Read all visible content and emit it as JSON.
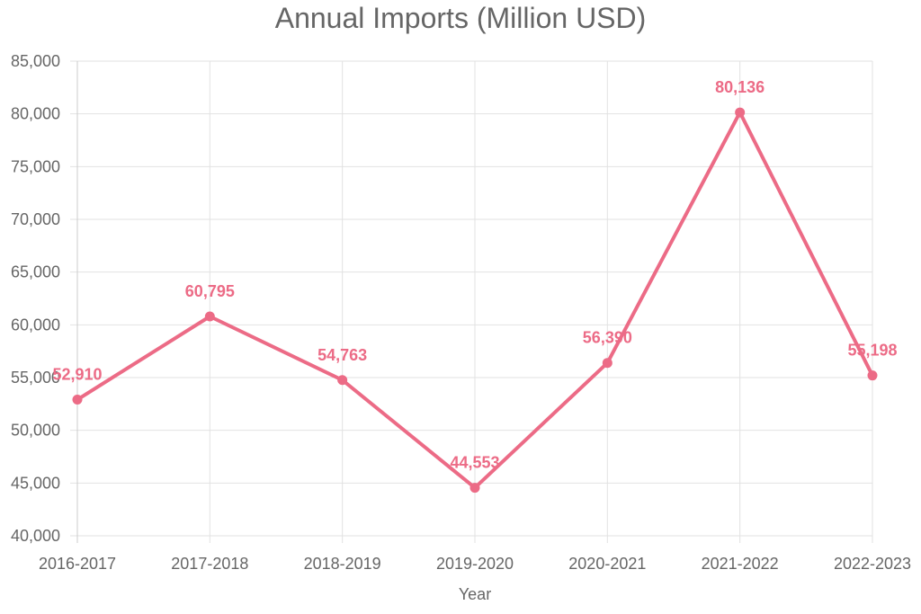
{
  "chart_data": {
    "type": "line",
    "title": "Annual Imports (Million USD)",
    "xlabel": "Year",
    "ylabel": "",
    "categories": [
      "2016-2017",
      "2017-2018",
      "2018-2019",
      "2019-2020",
      "2020-2021",
      "2021-2022",
      "2022-2023"
    ],
    "series": [
      {
        "values": [
          52910,
          60795,
          54763,
          44553,
          56390,
          80136,
          55198
        ],
        "color": "#ec6b86"
      }
    ],
    "data_labels": [
      "52,910",
      "60,795",
      "54,763",
      "44,553",
      "56,390",
      "80,136",
      "55,198"
    ],
    "ylim": [
      40000,
      85000
    ],
    "yticks": [
      40000,
      45000,
      50000,
      55000,
      60000,
      65000,
      70000,
      75000,
      80000,
      85000
    ],
    "ytick_labels": [
      "40,000",
      "45,000",
      "50,000",
      "55,000",
      "60,000",
      "65,000",
      "70,000",
      "75,000",
      "80,000",
      "85,000"
    ],
    "grid": true,
    "legend": "none"
  }
}
